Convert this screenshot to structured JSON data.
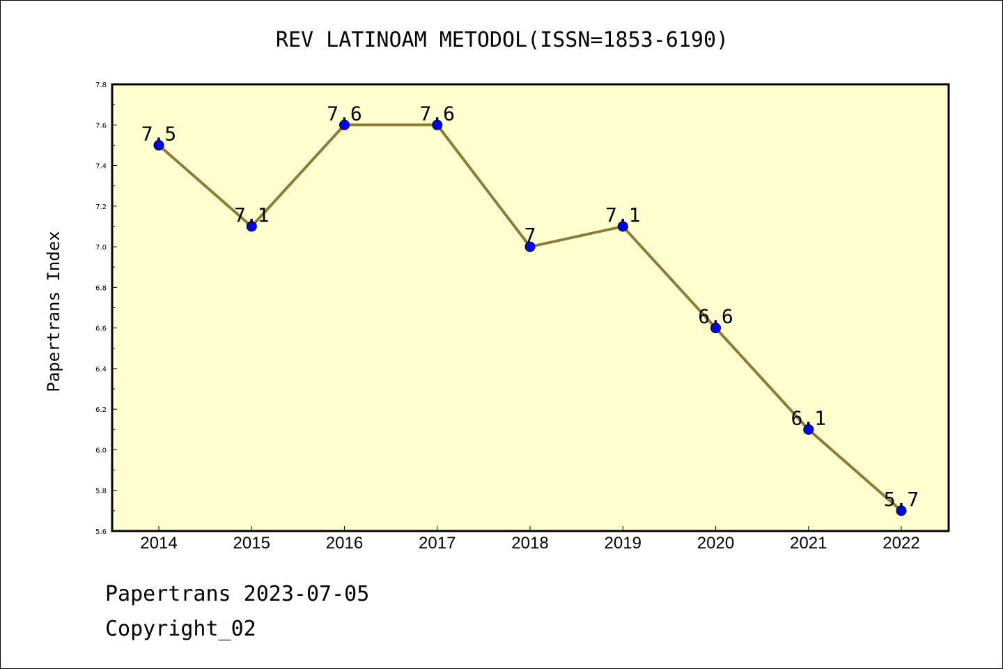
{
  "chart_data": {
    "type": "line",
    "title": "REV LATINOAM METODOL(ISSN=1853-6190)",
    "xlabel": "",
    "ylabel": "Papertrans Index",
    "categories": [
      "2014",
      "2015",
      "2016",
      "2017",
      "2018",
      "2019",
      "2020",
      "2021",
      "2022"
    ],
    "values": [
      7.5,
      7.1,
      7.6,
      7.6,
      7.0,
      7.1,
      6.6,
      6.1,
      5.7
    ],
    "data_labels": [
      "7.5",
      "7.1",
      "7.6",
      "7.6",
      "7",
      "7.1",
      "6.6",
      "6.1",
      "5.7"
    ],
    "ylim": [
      5.6,
      7.8
    ],
    "yticks": [
      5.6,
      5.8,
      6.0,
      6.2,
      6.4,
      6.6,
      6.8,
      7.0,
      7.2,
      7.4,
      7.6,
      7.8
    ],
    "ytick_labels": [
      "5.6",
      "5.8",
      "6.0",
      "6.2",
      "6.4",
      "6.6",
      "6.8",
      "7.0",
      "7.2",
      "7.4",
      "7.6",
      "7.8"
    ],
    "grid": false,
    "colors": {
      "plot_background": "#ffffd0",
      "line": "#8b7d35",
      "marker": "#0000ff"
    }
  },
  "footer": {
    "date_line": "Papertrans 2023-07-05",
    "copyright": "Copyright_02"
  }
}
